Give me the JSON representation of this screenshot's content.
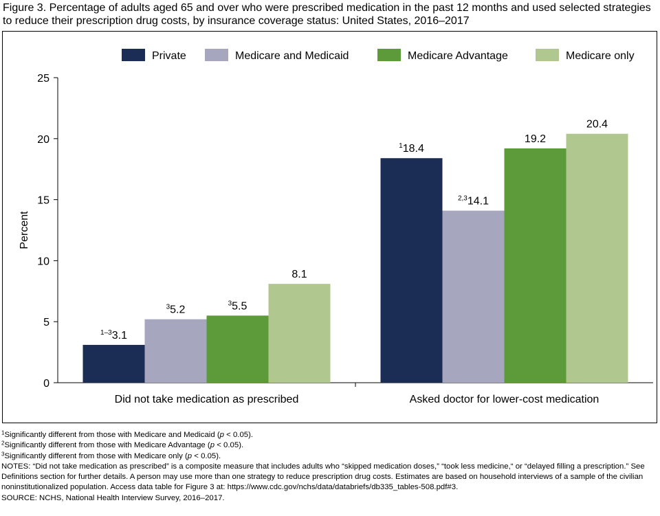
{
  "title": "Figure 3. Percentage of adults aged 65 and over who were prescribed medication in the past 12 months and used selected strategies to reduce their prescription drug costs, by insurance coverage status: United States, 2016–2017",
  "chart_data": {
    "type": "bar",
    "title": "",
    "xlabel": "",
    "ylabel": "Percent",
    "ylim": [
      0,
      25
    ],
    "yticks": [
      "0",
      "5",
      "10",
      "15",
      "20",
      "25"
    ],
    "grid": false,
    "legend_position": "top",
    "categories": [
      "Did not take medication as prescribed",
      "Asked doctor for lower-cost medication"
    ],
    "series": [
      {
        "name": "Private",
        "color": "#1c2d55",
        "values": [
          3.1,
          18.4
        ],
        "value_labels": [
          "3.1",
          "18.4"
        ],
        "superscripts": [
          "1–3",
          "1"
        ]
      },
      {
        "name": "Medicare and Medicaid",
        "color": "#a6a6bf",
        "values": [
          5.2,
          14.1
        ],
        "value_labels": [
          "5.2",
          "14.1"
        ],
        "superscripts": [
          "3",
          "2,3"
        ]
      },
      {
        "name": "Medicare Advantage",
        "color": "#5c9a3a",
        "values": [
          5.5,
          19.2
        ],
        "value_labels": [
          "5.5",
          "19.2"
        ],
        "superscripts": [
          "3",
          ""
        ]
      },
      {
        "name": "Medicare only",
        "color": "#b0c78f",
        "values": [
          8.1,
          20.4
        ],
        "value_labels": [
          "8.1",
          "20.4"
        ],
        "superscripts": [
          "",
          ""
        ]
      }
    ]
  },
  "footnotes": {
    "f1_sup": "1",
    "f1_a": "Significantly different from those with Medicare and Medicaid (",
    "f1_p": "p",
    "f1_b": " < 0.05).",
    "f2_sup": "2",
    "f2_a": "Significantly different from those with Medicare Advantage (",
    "f2_p": "p",
    "f2_b": " < 0.05).",
    "f3_sup": "3",
    "f3_a": "Significantly different from those with Medicare only (",
    "f3_p": "p",
    "f3_b": " < 0.05).",
    "notes": "NOTES: “Did not take medication as prescribed” is a composite measure that includes adults who “skipped medication doses,” “took less medicine,“ or “delayed filling a prescription.” See Definitions section for further details. A person may use more than one strategy to reduce prescription drug costs. Estimates are based on household interviews of a sample of the civilian noninstitutionalized population. Access data table for Figure 3 at: https://www.cdc.gov/nchs/data/databriefs/db335_tables-508.pdf#3.",
    "source": "SOURCE: NCHS, National Health Interview Survey, 2016–2017."
  }
}
